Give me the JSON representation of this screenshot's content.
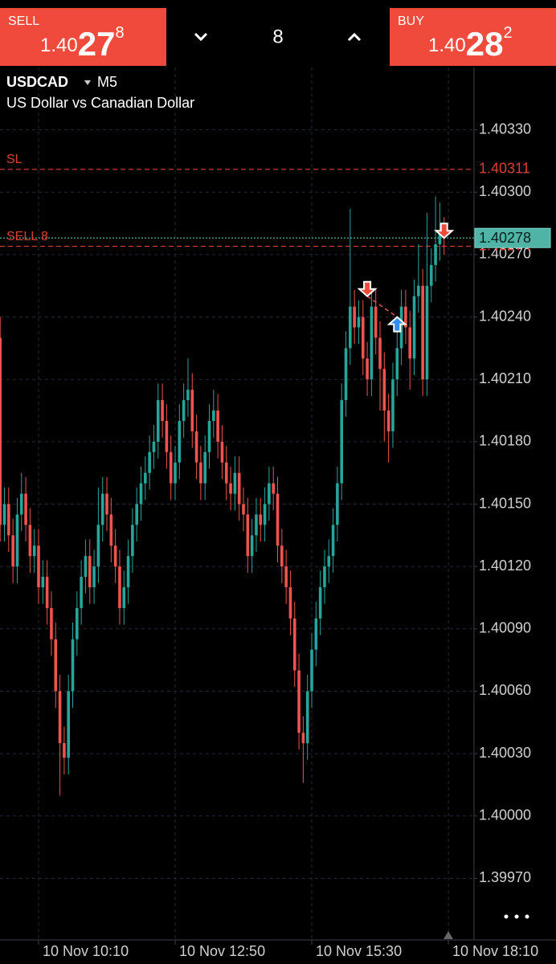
{
  "header": {
    "sell": {
      "label": "SELL",
      "price": [
        "1.40",
        "27",
        "8"
      ]
    },
    "volume": "8",
    "buy": {
      "label": "BUY",
      "price": [
        "1.40",
        "28",
        "2"
      ]
    }
  },
  "chart_data": {
    "type": "candlestick",
    "title": "USDCAD",
    "timeframe": "M5",
    "subtitle": "US Dollar vs Canadian Dollar",
    "up_color": "#26a69a",
    "down_color": "#ef5350",
    "grid": true,
    "ylim": [
      1.3994,
      1.4036
    ],
    "yticks": [
      {
        "value": 1.4033,
        "label": "1.40330"
      },
      {
        "value": 1.403,
        "label": "1.40300"
      },
      {
        "value": 1.4027,
        "label": "1.40270"
      },
      {
        "value": 1.4024,
        "label": "1.40240"
      },
      {
        "value": 1.4021,
        "label": "1.40210"
      },
      {
        "value": 1.4018,
        "label": "1.40180"
      },
      {
        "value": 1.4015,
        "label": "1.40150"
      },
      {
        "value": 1.4012,
        "label": "1.40120"
      },
      {
        "value": 1.4009,
        "label": "1.40090"
      },
      {
        "value": 1.4006,
        "label": "1.40060"
      },
      {
        "value": 1.4003,
        "label": "1.40030"
      },
      {
        "value": 1.4,
        "label": "1.40000"
      },
      {
        "value": 1.3997,
        "label": "1.39970"
      }
    ],
    "categories": [
      null,
      null,
      null,
      null,
      null,
      null,
      null,
      null,
      null,
      "10 Nov 10:10",
      null,
      null,
      null,
      null,
      null,
      null,
      null,
      null,
      null,
      null,
      null,
      null,
      null,
      null,
      null,
      null,
      null,
      null,
      null,
      null,
      null,
      null,
      null,
      null,
      null,
      null,
      null,
      null,
      null,
      null,
      null,
      "10 Nov 12:50",
      null,
      null,
      null,
      null,
      null,
      null,
      null,
      null,
      null,
      null,
      null,
      null,
      null,
      null,
      null,
      null,
      null,
      null,
      null,
      null,
      null,
      null,
      null,
      null,
      null,
      null,
      null,
      null,
      null,
      null,
      null,
      "10 Nov 15:30",
      null,
      null,
      null,
      null,
      null,
      null,
      null,
      null,
      null,
      null,
      null,
      null,
      null,
      null,
      null,
      null,
      null,
      null,
      null,
      null,
      null,
      null,
      null,
      null,
      null,
      null,
      null,
      null,
      null,
      null,
      null,
      "10 Nov 18:10"
    ],
    "series": [
      {
        "name": "USDCAD",
        "open": [
          1.4023,
          1.4014,
          1.4015,
          1.40135,
          1.4012,
          1.40145,
          1.40155,
          1.4014,
          1.40125,
          1.4013,
          1.4011,
          1.40115,
          1.401,
          1.40085,
          1.4006,
          1.40035,
          1.40028,
          1.4006,
          1.40085,
          1.401,
          1.40115,
          1.40125,
          1.4011,
          1.4012,
          1.4014,
          1.40155,
          1.40145,
          1.4013,
          1.4012,
          1.401,
          1.4011,
          1.40125,
          1.4014,
          1.4015,
          1.4016,
          1.40165,
          1.40175,
          1.4018,
          1.402,
          1.4019,
          1.40175,
          1.4016,
          1.4017,
          1.4019,
          1.402,
          1.40205,
          1.40185,
          1.4017,
          1.4016,
          1.40175,
          1.4019,
          1.40195,
          1.4018,
          1.4017,
          1.4016,
          1.40155,
          1.40165,
          1.4015,
          1.40145,
          1.40125,
          1.40135,
          1.40145,
          1.4014,
          1.4015,
          1.4016,
          1.40155,
          1.4013,
          1.4012,
          1.4011,
          1.40095,
          1.4007,
          1.4004,
          1.40035,
          1.4006,
          1.4008,
          1.40095,
          1.4011,
          1.4012,
          1.40125,
          1.4014,
          1.4016,
          1.402,
          1.40225,
          1.40245,
          1.40235,
          1.4024,
          1.4022,
          1.4021,
          1.40245,
          1.4023,
          1.40215,
          1.40195,
          1.40185,
          1.4021,
          1.40225,
          1.40245,
          1.40235,
          1.4022,
          1.4025,
          1.40255,
          1.4021,
          1.40255,
          1.40265,
          1.40275,
          1.4028,
          null
        ],
        "high": [
          1.4024,
          1.40158,
          1.40158,
          1.40143,
          1.40153,
          1.40165,
          1.40163,
          1.40148,
          1.40138,
          1.40138,
          1.40123,
          1.40123,
          1.40108,
          1.40093,
          1.40068,
          1.40043,
          1.40068,
          1.40093,
          1.40108,
          1.40123,
          1.40133,
          1.40133,
          1.40128,
          1.40158,
          1.40163,
          1.40163,
          1.40153,
          1.40138,
          1.40128,
          1.40118,
          1.40133,
          1.40148,
          1.40158,
          1.40168,
          1.40173,
          1.40183,
          1.40188,
          1.40208,
          1.40208,
          1.40198,
          1.40183,
          1.40178,
          1.40198,
          1.40208,
          1.4022,
          1.40213,
          1.40193,
          1.40178,
          1.40183,
          1.40198,
          1.40205,
          1.40203,
          1.40188,
          1.40178,
          1.40168,
          1.40173,
          1.40173,
          1.40158,
          1.40153,
          1.40143,
          1.40153,
          1.40153,
          1.40158,
          1.40168,
          1.40168,
          1.40163,
          1.40138,
          1.40128,
          1.40118,
          1.40103,
          1.40078,
          1.40048,
          1.40068,
          1.40088,
          1.40103,
          1.40118,
          1.40128,
          1.40133,
          1.40148,
          1.40168,
          1.40208,
          1.40233,
          1.40292,
          1.40253,
          1.40248,
          1.40248,
          1.40228,
          1.40253,
          1.40253,
          1.40238,
          1.40223,
          1.40203,
          1.40218,
          1.40233,
          1.40253,
          1.40253,
          1.40243,
          1.40258,
          1.40275,
          1.40263,
          1.4029,
          1.40273,
          1.40298,
          1.40295,
          1.40288,
          null
        ],
        "low": [
          1.40132,
          1.40132,
          1.40127,
          1.40112,
          1.40112,
          1.40137,
          1.40132,
          1.40117,
          1.40117,
          1.40102,
          1.40102,
          1.40092,
          1.40077,
          1.40052,
          1.4001,
          1.4002,
          1.4002,
          1.40052,
          1.40077,
          1.40092,
          1.40107,
          1.40102,
          1.40102,
          1.40112,
          1.40132,
          1.40137,
          1.40122,
          1.40112,
          1.40092,
          1.40092,
          1.40102,
          1.40117,
          1.40132,
          1.40142,
          1.40152,
          1.40157,
          1.40167,
          1.40172,
          1.40182,
          1.40167,
          1.40152,
          1.40152,
          1.40162,
          1.40182,
          1.40192,
          1.40177,
          1.40162,
          1.40152,
          1.40152,
          1.40167,
          1.40182,
          1.40172,
          1.40162,
          1.40152,
          1.40147,
          1.40147,
          1.40142,
          1.40137,
          1.40117,
          1.40117,
          1.40127,
          1.40132,
          1.40132,
          1.40142,
          1.40147,
          1.40122,
          1.40112,
          1.40102,
          1.40087,
          1.40062,
          1.40032,
          1.40016,
          1.40027,
          1.40052,
          1.40072,
          1.40087,
          1.40102,
          1.40112,
          1.40117,
          1.40132,
          1.40152,
          1.40192,
          1.40217,
          1.40227,
          1.40227,
          1.40212,
          1.40202,
          1.40202,
          1.40222,
          1.40195,
          1.4018,
          1.4017,
          1.40177,
          1.40202,
          1.40217,
          1.40227,
          1.40205,
          1.40212,
          1.40242,
          1.40202,
          1.40202,
          1.40247,
          1.40257,
          1.40267,
          1.4027,
          null
        ],
        "close": [
          1.4014,
          1.4015,
          1.40135,
          1.4012,
          1.40145,
          1.40155,
          1.4014,
          1.40125,
          1.4013,
          1.4011,
          1.40115,
          1.401,
          1.40085,
          1.4006,
          1.40035,
          1.40028,
          1.4006,
          1.40085,
          1.401,
          1.40115,
          1.40125,
          1.4011,
          1.4012,
          1.4014,
          1.40155,
          1.40145,
          1.4013,
          1.4012,
          1.401,
          1.4011,
          1.40125,
          1.4014,
          1.4015,
          1.4016,
          1.40165,
          1.40175,
          1.4018,
          1.402,
          1.4019,
          1.40175,
          1.4016,
          1.4017,
          1.4019,
          1.402,
          1.40205,
          1.40185,
          1.4017,
          1.4016,
          1.40175,
          1.4019,
          1.40195,
          1.4018,
          1.4017,
          1.4016,
          1.40155,
          1.40165,
          1.4015,
          1.40145,
          1.40125,
          1.40135,
          1.40145,
          1.4014,
          1.4015,
          1.4016,
          1.40155,
          1.4013,
          1.4012,
          1.4011,
          1.40095,
          1.4007,
          1.4004,
          1.40035,
          1.4006,
          1.4008,
          1.40095,
          1.4011,
          1.4012,
          1.40125,
          1.4014,
          1.4016,
          1.402,
          1.40225,
          1.40245,
          1.40235,
          1.4024,
          1.4022,
          1.4021,
          1.40245,
          1.4023,
          1.40215,
          1.40195,
          1.40185,
          1.4021,
          1.40225,
          1.40245,
          1.40235,
          1.4022,
          1.4025,
          1.40255,
          1.4021,
          1.40255,
          1.40265,
          1.40275,
          1.4028,
          1.40278,
          null
        ]
      }
    ],
    "levels": [
      {
        "label": "SL",
        "price": 1.40311,
        "color": "#d9402f",
        "style": "dashed"
      },
      {
        "label": "SELL 8",
        "price": 1.40274,
        "color": "#d9402f",
        "style": "dashed"
      }
    ],
    "current_price": {
      "price": 1.40278,
      "color": "#4fb3a6"
    },
    "trades": [
      {
        "kind": "sell",
        "candle": 86,
        "price": 1.4025
      },
      {
        "kind": "buy",
        "candle": 93,
        "price": 1.4024
      },
      {
        "kind": "sell",
        "candle": 104,
        "price": 1.40278
      }
    ]
  }
}
